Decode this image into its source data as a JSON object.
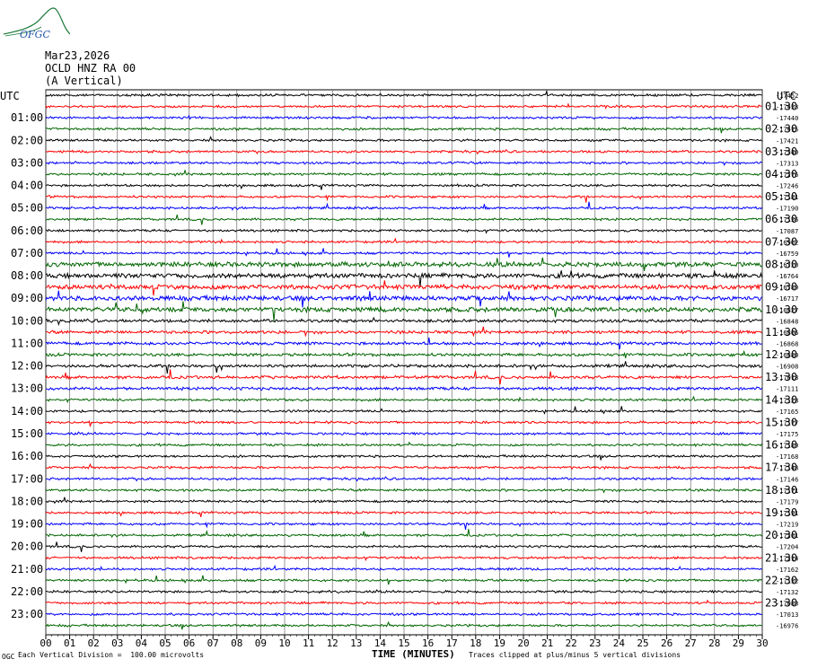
{
  "logo": {
    "text": "OFGC"
  },
  "header": {
    "date": "Mar23,2026",
    "station": "OCLD HNZ RA 00",
    "component": "(A Vertical)"
  },
  "chart_data": {
    "type": "line",
    "left_axis_label": "UTC",
    "right_axis_label": "UTC",
    "left_hour_labels": [
      "01:00",
      "02:00",
      "03:00",
      "04:00",
      "05:00",
      "06:00",
      "07:00",
      "08:00",
      "09:00",
      "10:00",
      "11:00",
      "12:00",
      "13:00",
      "14:00",
      "15:00",
      "16:00",
      "17:00",
      "18:00",
      "19:00",
      "20:00",
      "21:00",
      "22:00",
      "23:00"
    ],
    "right_hour_labels": [
      "01:30",
      "02:30",
      "03:30",
      "04:30",
      "05:30",
      "06:30",
      "07:30",
      "08:30",
      "09:30",
      "10:30",
      "11:30",
      "12:30",
      "13:30",
      "14:30",
      "15:30",
      "16:30",
      "17:30",
      "18:30",
      "19:30",
      "20:30",
      "21:30",
      "22:30",
      "23:30"
    ],
    "row_offsets": [
      "-17452",
      "-17453",
      "-17440",
      "-17415",
      "-17421",
      "-17340",
      "-17313",
      "-17276",
      "-17246",
      "-17181",
      "-17190",
      "-17156",
      "-17087",
      "-16962",
      "-16759",
      "-16720",
      "-16764",
      "-16789",
      "-16717",
      "-16827",
      "-16848",
      "-16866",
      "-16868",
      "-16880",
      "-16908",
      "-17018",
      "-17111",
      "-17128",
      "-17165",
      "-17177",
      "-17175",
      "-17189",
      "-17168",
      "-17148",
      "-17146",
      "-17171",
      "-17179",
      "-17191",
      "-17219",
      "-17261",
      "-17204",
      "-17214",
      "-17162",
      "-17152",
      "-17132",
      "-17088",
      "-17013",
      "-16976"
    ],
    "xlabel": "TIME (MINUTES)",
    "x_ticks": [
      "00",
      "01",
      "02",
      "03",
      "04",
      "05",
      "06",
      "07",
      "08",
      "09",
      "10",
      "11",
      "12",
      "13",
      "14",
      "15",
      "16",
      "17",
      "18",
      "19",
      "20",
      "21",
      "22",
      "23",
      "24",
      "25",
      "26",
      "27",
      "28",
      "29",
      "30"
    ],
    "x_range": [
      0,
      30
    ],
    "trace_colors": [
      "#000000",
      "#ff0000",
      "#0000ff",
      "#006600"
    ],
    "grid": true,
    "footer_left": "Each Vertical Division =  100.00 microvolts",
    "footer_right": "Traces clipped at plus/minus 5 vertical divisions",
    "corner_mark": "OGC"
  }
}
